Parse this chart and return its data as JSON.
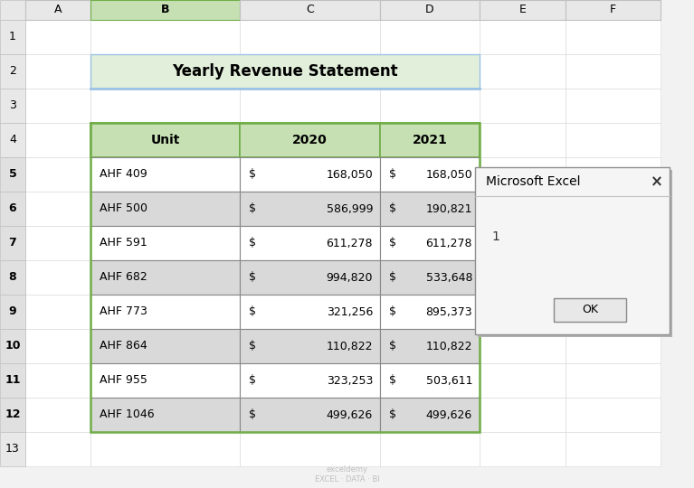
{
  "title": "Yearly Revenue Statement",
  "col_headers": [
    "Unit",
    "2020",
    "2021"
  ],
  "rows": [
    [
      "AHF 409",
      "168,050",
      "168,050"
    ],
    [
      "AHF 500",
      "586,999",
      "190,821"
    ],
    [
      "AHF 591",
      "611,278",
      "611,278"
    ],
    [
      "AHF 682",
      "994,820",
      "533,648"
    ],
    [
      "AHF 773",
      "321,256",
      "895,373"
    ],
    [
      "AHF 864",
      "110,822",
      "110,822"
    ],
    [
      "AHF 955",
      "323,253",
      "503,611"
    ],
    [
      "AHF 1046",
      "499,626",
      "499,626"
    ]
  ],
  "header_bg": "#c6e0b4",
  "header_border": "#70ad47",
  "title_bg": "#e2efda",
  "title_border": "#9bc2e6",
  "row_bg_even": "#ffffff",
  "row_bg_odd": "#d9d9d9",
  "col_letters": [
    "A",
    "B",
    "C",
    "D",
    "E",
    "F"
  ],
  "fig_bg": "#f2f2f2",
  "excel_bg": "#ffffff",
  "dialog_title": "Microsoft Excel",
  "dialog_text": "1",
  "dialog_btn": "OK",
  "watermark": "exceldemy\nEXCEL · DATA · BI"
}
